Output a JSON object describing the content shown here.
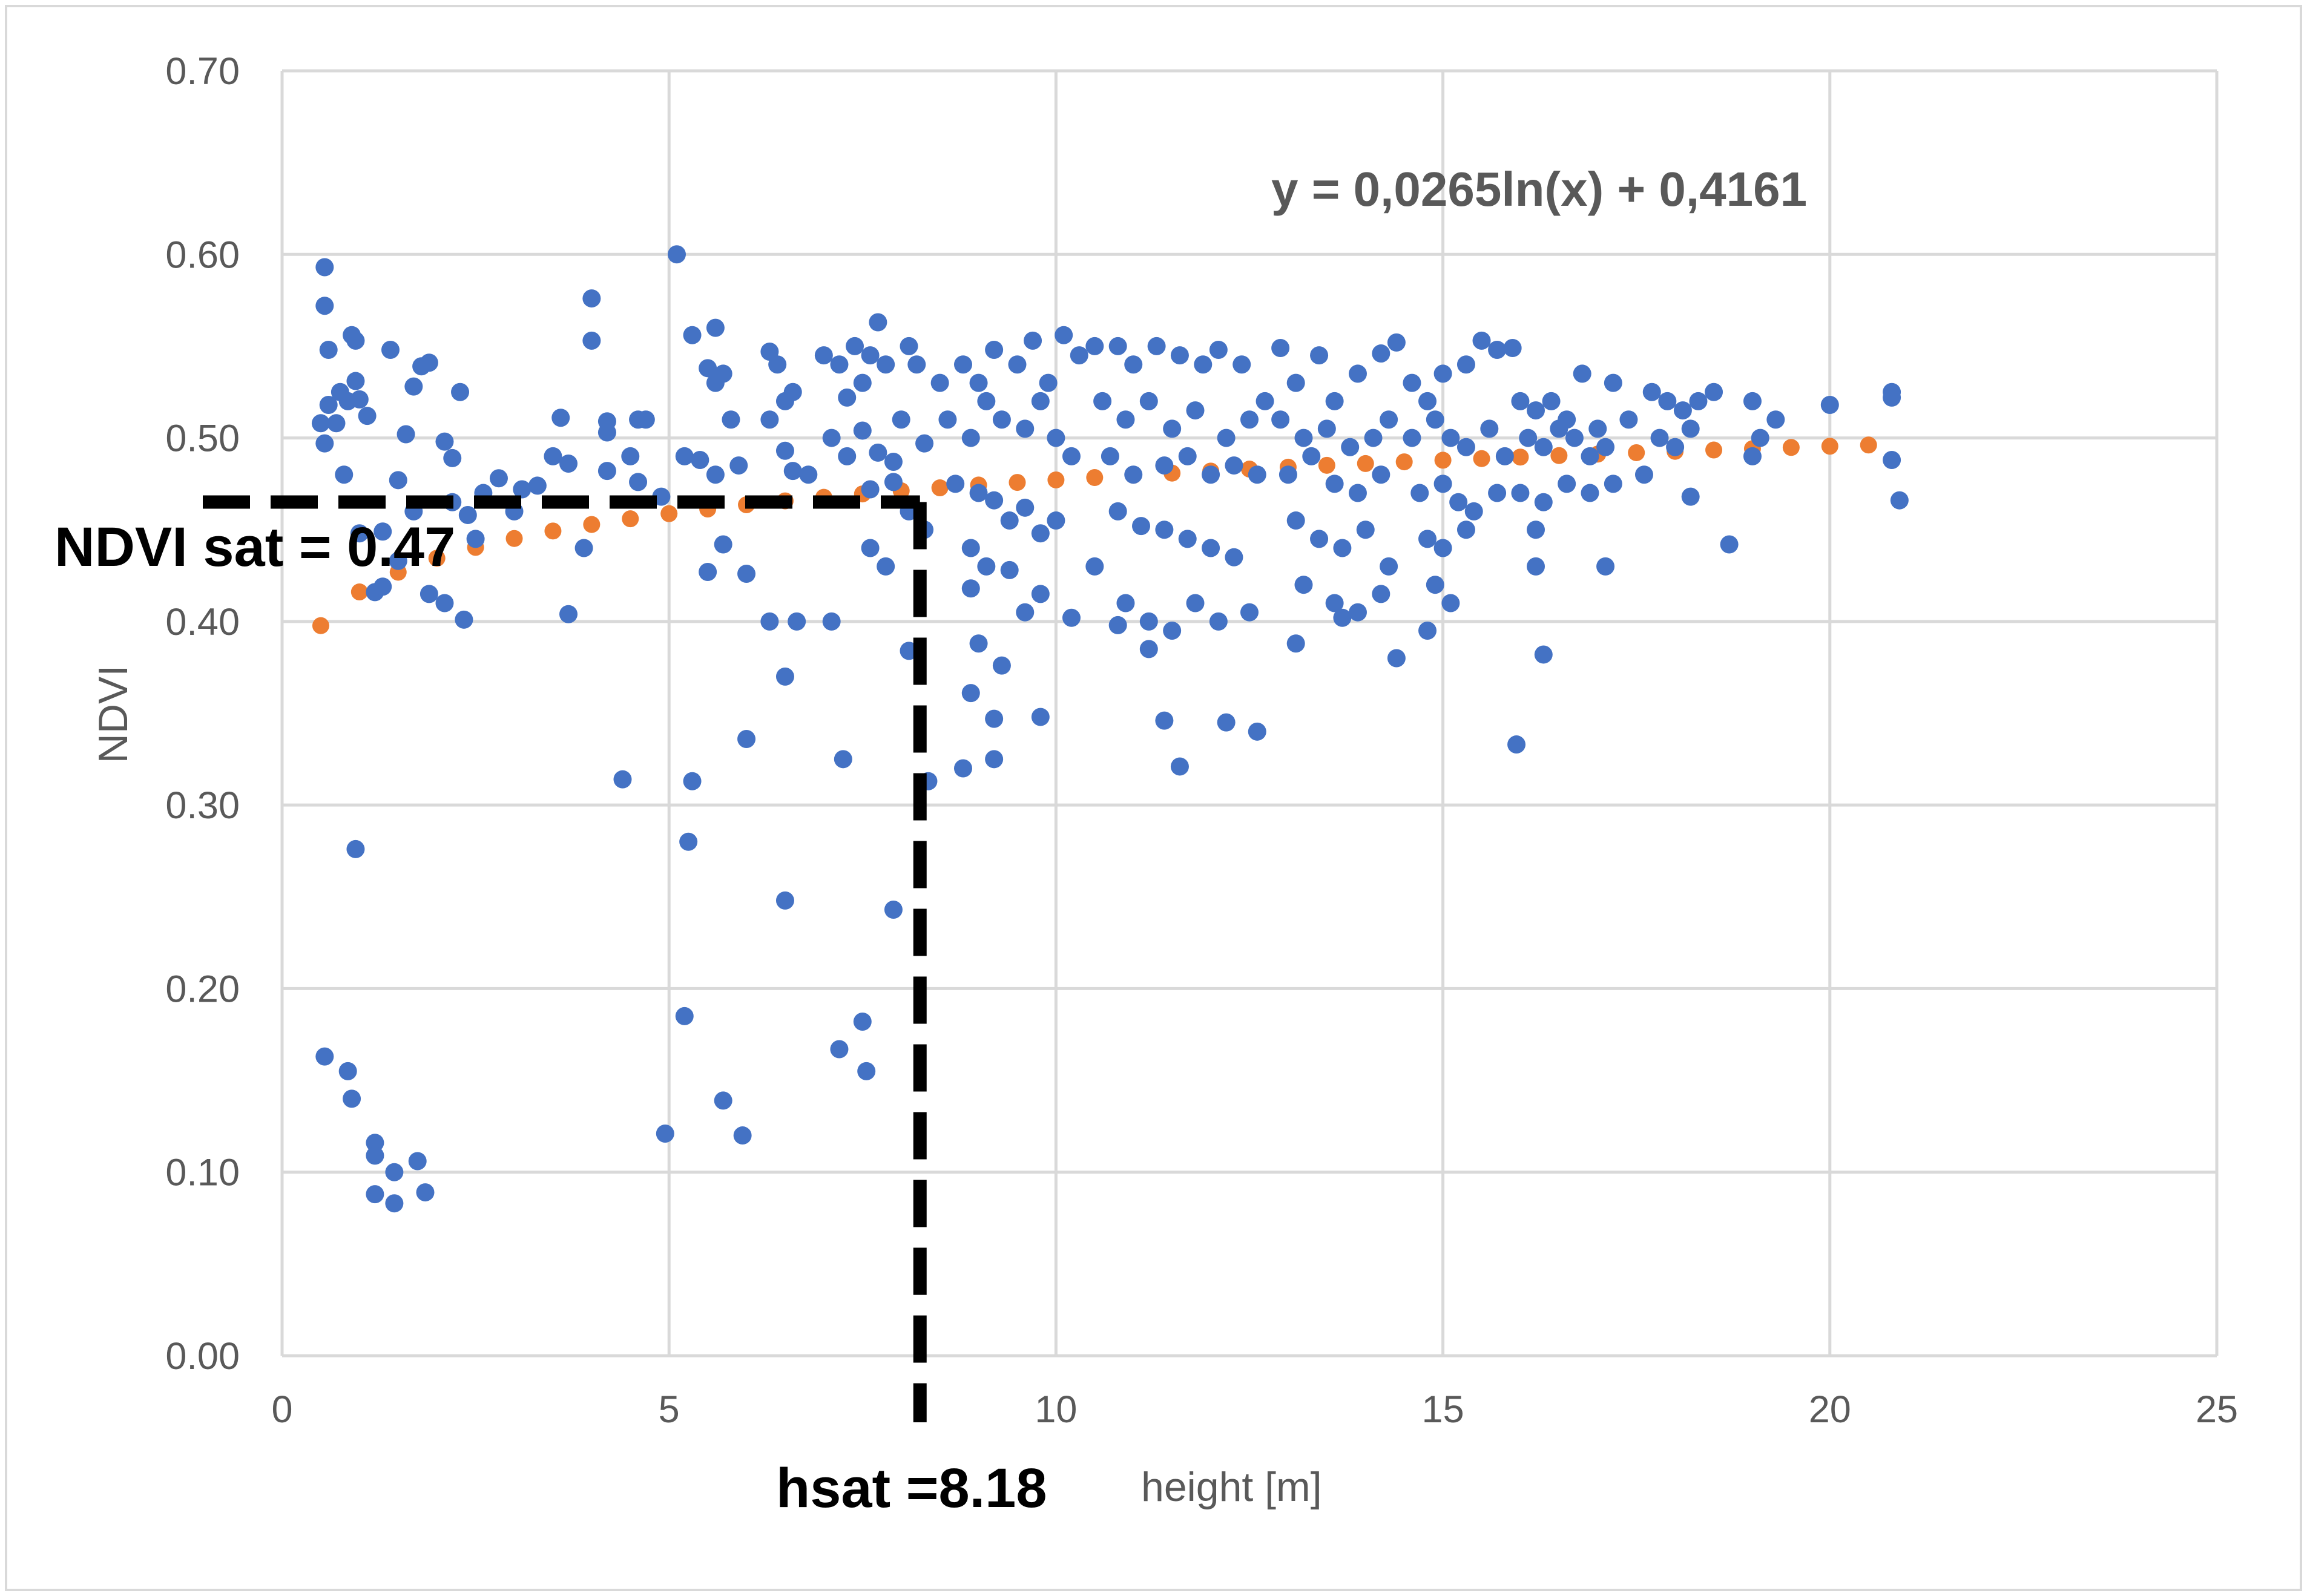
{
  "chart_data": {
    "type": "scatter",
    "xlabel": "height [m]",
    "ylabel": "NDVI",
    "xlim": [
      0,
      25
    ],
    "ylim": [
      0.0,
      0.7
    ],
    "x_ticks": [
      "0",
      "5",
      "10",
      "15",
      "20",
      "25"
    ],
    "y_ticks": [
      "0.00",
      "0.10",
      "0.20",
      "0.30",
      "0.40",
      "0.50",
      "0.60",
      "0.70"
    ],
    "grid": true,
    "legend": "none",
    "colors": {
      "points": "#4472c4",
      "trend": "#ed7d31",
      "grid": "#d9d9d9",
      "guide": "#000000"
    },
    "trendline": {
      "type": "logarithmic",
      "a": 0.0265,
      "b": 0.4161,
      "equation_label": "y = 0,0265ln(x) + 0,4161"
    },
    "annotations": {
      "ndvi_sat": {
        "label": "NDVI sat = 0.47",
        "value": 0.47
      },
      "hsat": {
        "label": "hsat =8.18",
        "value": 8.18
      }
    },
    "series": [
      {
        "values": [
          [
            0.55,
            0.593
          ],
          [
            0.55,
            0.572
          ],
          [
            0.6,
            0.548
          ],
          [
            0.9,
            0.556
          ],
          [
            0.95,
            0.553
          ],
          [
            0.5,
            0.508
          ],
          [
            0.55,
            0.497
          ],
          [
            0.6,
            0.518
          ],
          [
            0.7,
            0.508
          ],
          [
            0.75,
            0.525
          ],
          [
            0.85,
            0.52
          ],
          [
            0.95,
            0.531
          ],
          [
            1.0,
            0.521
          ],
          [
            1.1,
            0.512
          ],
          [
            0.8,
            0.48
          ],
          [
            1.0,
            0.448
          ],
          [
            1.3,
            0.449
          ],
          [
            1.4,
            0.548
          ],
          [
            1.6,
            0.502
          ],
          [
            1.7,
            0.528
          ],
          [
            1.8,
            0.539
          ],
          [
            1.9,
            0.541
          ],
          [
            2.1,
            0.498
          ],
          [
            2.2,
            0.489
          ],
          [
            2.3,
            0.525
          ],
          [
            2.4,
            0.458
          ],
          [
            1.2,
            0.416
          ],
          [
            1.3,
            0.419
          ],
          [
            1.5,
            0.433
          ],
          [
            1.9,
            0.415
          ],
          [
            2.1,
            0.41
          ],
          [
            2.35,
            0.401
          ],
          [
            0.95,
            0.276
          ],
          [
            0.55,
            0.163
          ],
          [
            0.85,
            0.155
          ],
          [
            0.9,
            0.14
          ],
          [
            1.2,
            0.116
          ],
          [
            1.2,
            0.109
          ],
          [
            1.2,
            0.088
          ],
          [
            1.45,
            0.1
          ],
          [
            1.45,
            0.083
          ],
          [
            1.75,
            0.106
          ],
          [
            1.85,
            0.089
          ],
          [
            3.6,
            0.511
          ],
          [
            3.7,
            0.486
          ],
          [
            4.0,
            0.576
          ],
          [
            4.0,
            0.553
          ],
          [
            4.2,
            0.509
          ],
          [
            4.2,
            0.503
          ],
          [
            4.6,
            0.51
          ],
          [
            4.7,
            0.51
          ],
          [
            4.2,
            0.482
          ],
          [
            4.5,
            0.49
          ],
          [
            4.6,
            0.476
          ],
          [
            4.9,
            0.468
          ],
          [
            5.1,
            0.6
          ],
          [
            5.3,
            0.556
          ],
          [
            5.5,
            0.538
          ],
          [
            5.6,
            0.53
          ],
          [
            5.6,
            0.56
          ],
          [
            5.7,
            0.535
          ],
          [
            5.8,
            0.51
          ],
          [
            5.2,
            0.49
          ],
          [
            5.4,
            0.488
          ],
          [
            5.6,
            0.48
          ],
          [
            5.9,
            0.485
          ],
          [
            5.5,
            0.427
          ],
          [
            5.7,
            0.442
          ],
          [
            6.0,
            0.426
          ],
          [
            3.7,
            0.404
          ],
          [
            3.9,
            0.44
          ],
          [
            4.4,
            0.314
          ],
          [
            5.3,
            0.313
          ],
          [
            5.25,
            0.28
          ],
          [
            5.2,
            0.185
          ],
          [
            4.95,
            0.121
          ],
          [
            5.7,
            0.139
          ],
          [
            5.95,
            0.12
          ],
          [
            6.3,
            0.547
          ],
          [
            6.4,
            0.54
          ],
          [
            6.5,
            0.52
          ],
          [
            6.6,
            0.525
          ],
          [
            6.3,
            0.51
          ],
          [
            6.5,
            0.493
          ],
          [
            6.6,
            0.482
          ],
          [
            6.8,
            0.48
          ],
          [
            7.0,
            0.545
          ],
          [
            7.2,
            0.54
          ],
          [
            7.3,
            0.522
          ],
          [
            7.5,
            0.53
          ],
          [
            7.4,
            0.55
          ],
          [
            7.6,
            0.545
          ],
          [
            7.7,
            0.563
          ],
          [
            7.8,
            0.54
          ],
          [
            7.1,
            0.5
          ],
          [
            7.3,
            0.49
          ],
          [
            7.5,
            0.504
          ],
          [
            7.7,
            0.492
          ],
          [
            7.9,
            0.487
          ],
          [
            8.1,
            0.55
          ],
          [
            8.2,
            0.54
          ],
          [
            8.0,
            0.51
          ],
          [
            8.3,
            0.497
          ],
          [
            7.6,
            0.472
          ],
          [
            7.9,
            0.476
          ],
          [
            8.1,
            0.46
          ],
          [
            8.3,
            0.45
          ],
          [
            7.8,
            0.43
          ],
          [
            7.6,
            0.44
          ],
          [
            6.0,
            0.336
          ],
          [
            6.3,
            0.4
          ],
          [
            6.65,
            0.4
          ],
          [
            7.1,
            0.4
          ],
          [
            6.5,
            0.37
          ],
          [
            6.5,
            0.248
          ],
          [
            7.25,
            0.325
          ],
          [
            7.2,
            0.167
          ],
          [
            7.5,
            0.182
          ],
          [
            7.55,
            0.155
          ],
          [
            7.9,
            0.243
          ],
          [
            8.1,
            0.384
          ],
          [
            8.35,
            0.313
          ],
          [
            8.8,
            0.32
          ],
          [
            8.5,
            0.53
          ],
          [
            8.8,
            0.54
          ],
          [
            9.0,
            0.53
          ],
          [
            9.2,
            0.548
          ],
          [
            9.5,
            0.54
          ],
          [
            9.7,
            0.553
          ],
          [
            9.9,
            0.53
          ],
          [
            10.1,
            0.556
          ],
          [
            10.3,
            0.545
          ],
          [
            8.6,
            0.51
          ],
          [
            8.9,
            0.5
          ],
          [
            9.1,
            0.52
          ],
          [
            9.3,
            0.51
          ],
          [
            9.6,
            0.505
          ],
          [
            9.8,
            0.52
          ],
          [
            10.0,
            0.5
          ],
          [
            10.2,
            0.49
          ],
          [
            8.7,
            0.475
          ],
          [
            9.0,
            0.47
          ],
          [
            9.2,
            0.466
          ],
          [
            9.4,
            0.455
          ],
          [
            9.6,
            0.462
          ],
          [
            9.8,
            0.448
          ],
          [
            10.0,
            0.455
          ],
          [
            8.9,
            0.44
          ],
          [
            9.1,
            0.43
          ],
          [
            9.4,
            0.428
          ],
          [
            9.6,
            0.405
          ],
          [
            9.8,
            0.415
          ],
          [
            8.9,
            0.418
          ],
          [
            8.9,
            0.361
          ],
          [
            9.0,
            0.388
          ],
          [
            9.3,
            0.376
          ],
          [
            9.2,
            0.347
          ],
          [
            9.2,
            0.325
          ],
          [
            9.8,
            0.348
          ],
          [
            10.2,
            0.402
          ],
          [
            10.5,
            0.55
          ],
          [
            10.8,
            0.55
          ],
          [
            11.0,
            0.54
          ],
          [
            11.3,
            0.55
          ],
          [
            11.6,
            0.545
          ],
          [
            11.9,
            0.54
          ],
          [
            12.1,
            0.548
          ],
          [
            12.4,
            0.54
          ],
          [
            10.6,
            0.52
          ],
          [
            10.9,
            0.51
          ],
          [
            11.2,
            0.52
          ],
          [
            11.5,
            0.505
          ],
          [
            11.8,
            0.515
          ],
          [
            12.2,
            0.5
          ],
          [
            12.5,
            0.51
          ],
          [
            12.7,
            0.52
          ],
          [
            10.7,
            0.49
          ],
          [
            11.0,
            0.48
          ],
          [
            11.4,
            0.485
          ],
          [
            11.7,
            0.49
          ],
          [
            12.0,
            0.48
          ],
          [
            12.3,
            0.485
          ],
          [
            12.6,
            0.48
          ],
          [
            10.8,
            0.46
          ],
          [
            11.1,
            0.452
          ],
          [
            11.4,
            0.45
          ],
          [
            11.7,
            0.445
          ],
          [
            12.0,
            0.44
          ],
          [
            12.3,
            0.435
          ],
          [
            10.5,
            0.43
          ],
          [
            10.9,
            0.41
          ],
          [
            11.2,
            0.4
          ],
          [
            11.5,
            0.395
          ],
          [
            11.8,
            0.41
          ],
          [
            12.1,
            0.4
          ],
          [
            12.5,
            0.405
          ],
          [
            11.4,
            0.346
          ],
          [
            12.2,
            0.345
          ],
          [
            12.6,
            0.34
          ],
          [
            11.6,
            0.321
          ],
          [
            10.8,
            0.398
          ],
          [
            11.2,
            0.385
          ],
          [
            12.9,
            0.549
          ],
          [
            13.1,
            0.53
          ],
          [
            13.4,
            0.545
          ],
          [
            13.6,
            0.52
          ],
          [
            13.9,
            0.535
          ],
          [
            14.2,
            0.546
          ],
          [
            14.4,
            0.552
          ],
          [
            12.9,
            0.51
          ],
          [
            13.2,
            0.5
          ],
          [
            13.5,
            0.505
          ],
          [
            13.8,
            0.495
          ],
          [
            14.1,
            0.5
          ],
          [
            14.3,
            0.51
          ],
          [
            13.0,
            0.48
          ],
          [
            13.3,
            0.49
          ],
          [
            13.6,
            0.475
          ],
          [
            13.9,
            0.47
          ],
          [
            14.2,
            0.48
          ],
          [
            13.1,
            0.455
          ],
          [
            13.4,
            0.445
          ],
          [
            13.7,
            0.44
          ],
          [
            14.0,
            0.45
          ],
          [
            14.3,
            0.43
          ],
          [
            13.2,
            0.42
          ],
          [
            13.6,
            0.41
          ],
          [
            13.9,
            0.405
          ],
          [
            14.2,
            0.415
          ],
          [
            13.1,
            0.388
          ],
          [
            13.7,
            0.402
          ],
          [
            14.4,
            0.38
          ],
          [
            14.6,
            0.53
          ],
          [
            14.8,
            0.52
          ],
          [
            15.0,
            0.535
          ],
          [
            15.3,
            0.54
          ],
          [
            15.5,
            0.553
          ],
          [
            15.7,
            0.548
          ],
          [
            15.9,
            0.549
          ],
          [
            14.6,
            0.5
          ],
          [
            14.9,
            0.51
          ],
          [
            15.1,
            0.5
          ],
          [
            15.3,
            0.495
          ],
          [
            15.6,
            0.505
          ],
          [
            15.8,
            0.49
          ],
          [
            14.7,
            0.47
          ],
          [
            15.0,
            0.475
          ],
          [
            15.2,
            0.465
          ],
          [
            15.4,
            0.46
          ],
          [
            15.7,
            0.47
          ],
          [
            14.8,
            0.445
          ],
          [
            15.0,
            0.44
          ],
          [
            15.3,
            0.45
          ],
          [
            14.9,
            0.42
          ],
          [
            15.1,
            0.41
          ],
          [
            14.8,
            0.395
          ],
          [
            16.0,
            0.52
          ],
          [
            16.2,
            0.515
          ],
          [
            16.4,
            0.52
          ],
          [
            16.6,
            0.51
          ],
          [
            16.8,
            0.535
          ],
          [
            17.0,
            0.505
          ],
          [
            17.2,
            0.53
          ],
          [
            17.4,
            0.51
          ],
          [
            16.1,
            0.5
          ],
          [
            16.3,
            0.495
          ],
          [
            16.5,
            0.505
          ],
          [
            16.7,
            0.5
          ],
          [
            16.9,
            0.49
          ],
          [
            17.1,
            0.495
          ],
          [
            16.0,
            0.47
          ],
          [
            16.3,
            0.465
          ],
          [
            16.6,
            0.475
          ],
          [
            16.9,
            0.47
          ],
          [
            17.2,
            0.475
          ],
          [
            16.2,
            0.45
          ],
          [
            16.2,
            0.43
          ],
          [
            16.3,
            0.382
          ],
          [
            15.95,
            0.333
          ],
          [
            17.1,
            0.43
          ],
          [
            17.7,
            0.525
          ],
          [
            17.9,
            0.52
          ],
          [
            18.1,
            0.515
          ],
          [
            18.3,
            0.52
          ],
          [
            18.5,
            0.525
          ],
          [
            17.8,
            0.5
          ],
          [
            18.0,
            0.495
          ],
          [
            18.2,
            0.505
          ],
          [
            17.6,
            0.48
          ],
          [
            18.2,
            0.468
          ],
          [
            18.7,
            0.442
          ],
          [
            19.0,
            0.52
          ],
          [
            19.3,
            0.51
          ],
          [
            19.1,
            0.5
          ],
          [
            19.0,
            0.49
          ],
          [
            20.0,
            0.518
          ],
          [
            20.8,
            0.525
          ],
          [
            20.8,
            0.522
          ],
          [
            20.8,
            0.488
          ],
          [
            20.9,
            0.466
          ],
          [
            2.8,
            0.478
          ],
          [
            3.1,
            0.472
          ],
          [
            3.3,
            0.474
          ],
          [
            3.5,
            0.49
          ],
          [
            3.0,
            0.46
          ],
          [
            2.6,
            0.47
          ],
          [
            2.5,
            0.445
          ],
          [
            2.2,
            0.465
          ],
          [
            1.7,
            0.46
          ],
          [
            1.5,
            0.477
          ]
        ]
      }
    ]
  }
}
